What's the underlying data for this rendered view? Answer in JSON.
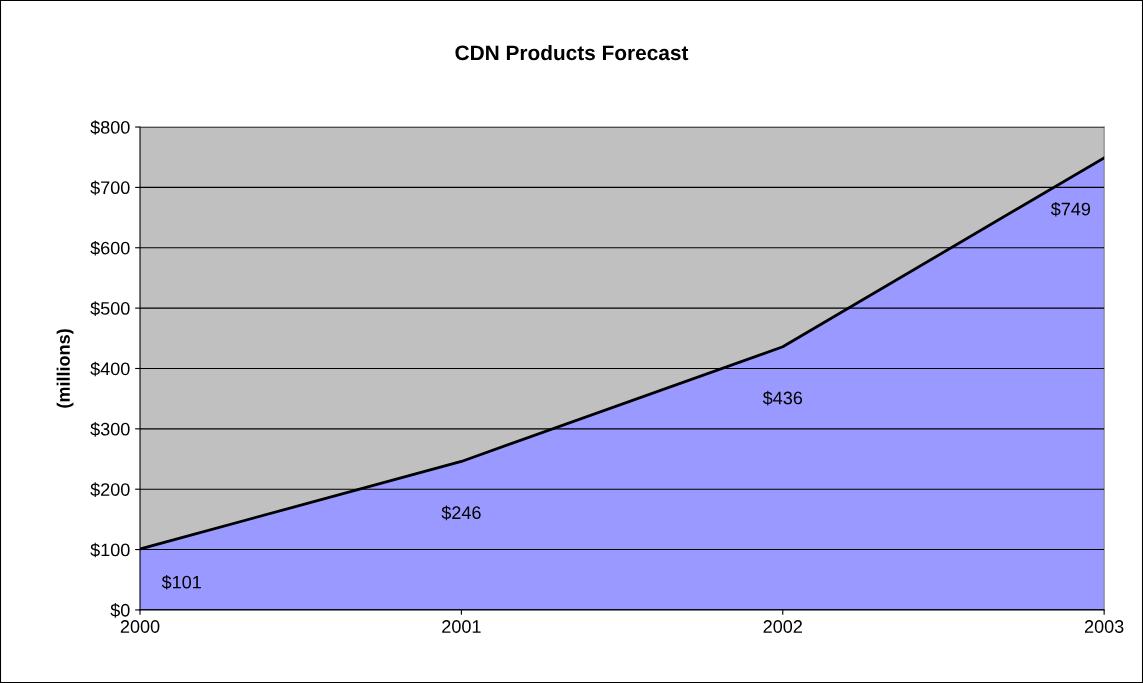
{
  "chart_data": {
    "type": "area",
    "title": "CDN Products Forecast",
    "ylabel": "(millions)",
    "categories": [
      "2000",
      "2001",
      "2002",
      "2003"
    ],
    "series": [
      {
        "color": "#9999ff",
        "values": [
          101,
          246,
          436,
          749
        ],
        "value_labels": [
          "$101",
          "$246",
          "$436",
          "$749"
        ]
      }
    ],
    "ylim": [
      0,
      800
    ],
    "yticks": [
      {
        "value": 0,
        "label": "$0"
      },
      {
        "value": 100,
        "label": "$100"
      },
      {
        "value": 200,
        "label": "$200"
      },
      {
        "value": 300,
        "label": "$300"
      },
      {
        "value": 400,
        "label": "$400"
      },
      {
        "value": 500,
        "label": "$500"
      },
      {
        "value": 600,
        "label": "$600"
      },
      {
        "value": 700,
        "label": "$700"
      },
      {
        "value": 800,
        "label": "$800"
      }
    ],
    "grid": "y",
    "legend": false
  }
}
